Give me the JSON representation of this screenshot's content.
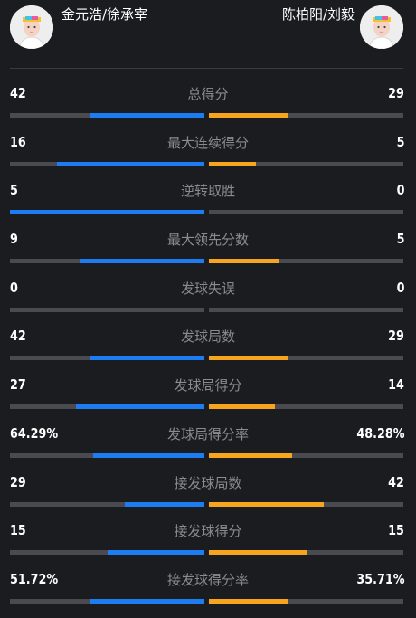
{
  "players": {
    "left": {
      "name": "金元浩/徐承宰",
      "avatar": "player-avatar-icon"
    },
    "right": {
      "name": "陈柏阳/刘毅",
      "avatar": "player-avatar-icon"
    }
  },
  "colors": {
    "left_bar": "#1d7cf2",
    "right_bar": "#f7a51c",
    "track": "#4a4b50",
    "background": "#1b1c20"
  },
  "stats": [
    {
      "label": "总得分",
      "left": "42",
      "right": "29",
      "left_fill": 0.59,
      "right_fill": 0.41
    },
    {
      "label": "最大连续得分",
      "left": "16",
      "right": "5",
      "left_fill": 0.76,
      "right_fill": 0.24
    },
    {
      "label": "逆转取胜",
      "left": "5",
      "right": "0",
      "left_fill": 1.0,
      "right_fill": 0.0
    },
    {
      "label": "最大领先分数",
      "left": "9",
      "right": "5",
      "left_fill": 0.64,
      "right_fill": 0.36
    },
    {
      "label": "发球失误",
      "left": "0",
      "right": "0",
      "left_fill": 0.0,
      "right_fill": 0.0
    },
    {
      "label": "发球局数",
      "left": "42",
      "right": "29",
      "left_fill": 0.59,
      "right_fill": 0.41
    },
    {
      "label": "发球局得分",
      "left": "27",
      "right": "14",
      "left_fill": 0.66,
      "right_fill": 0.34
    },
    {
      "label": "发球局得分率",
      "left": "64.29%",
      "right": "48.28%",
      "left_fill": 0.57,
      "right_fill": 0.43
    },
    {
      "label": "接发球局数",
      "left": "29",
      "right": "42",
      "left_fill": 0.41,
      "right_fill": 0.59
    },
    {
      "label": "接发球得分",
      "left": "15",
      "right": "15",
      "left_fill": 0.5,
      "right_fill": 0.5
    },
    {
      "label": "接发球得分率",
      "left": "51.72%",
      "right": "35.71%",
      "left_fill": 0.59,
      "right_fill": 0.41
    }
  ]
}
